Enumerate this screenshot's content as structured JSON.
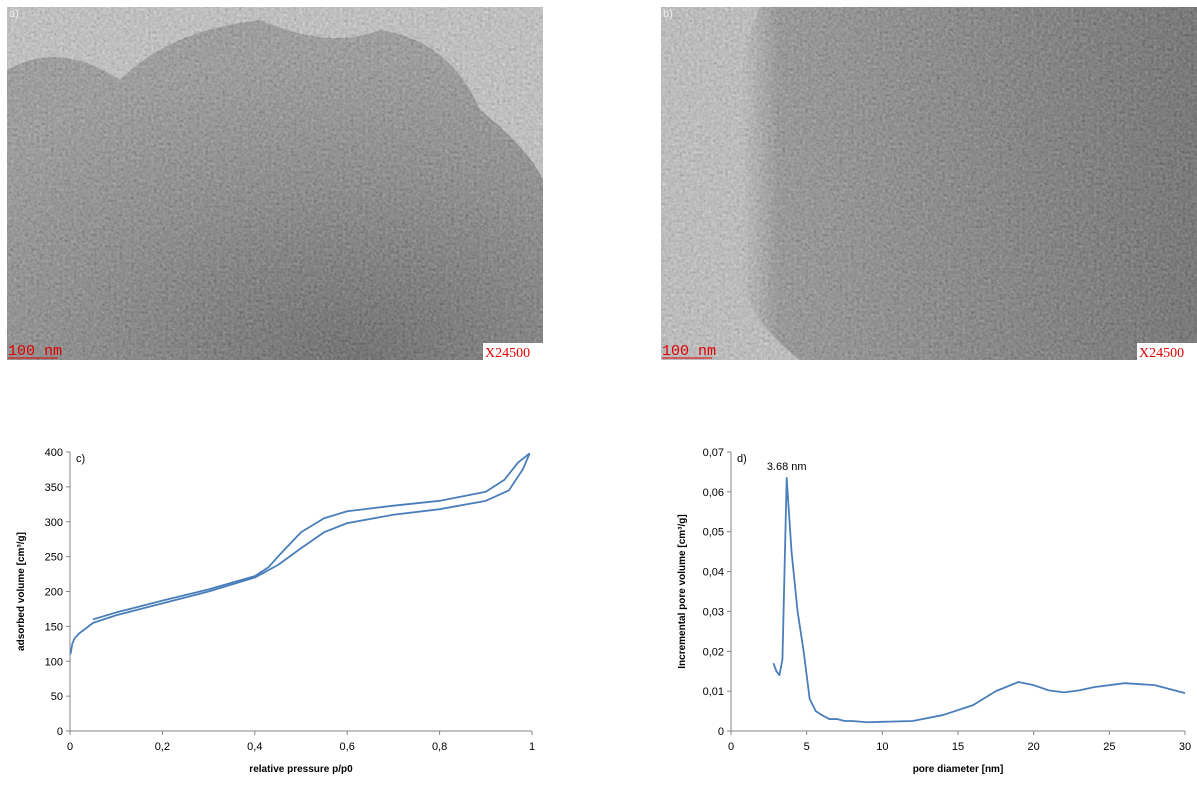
{
  "images": [
    {
      "label": "a)",
      "scale": "100 nm",
      "magnification": "X24500"
    },
    {
      "label": "b)",
      "scale": "100 nm",
      "magnification": "X24500"
    }
  ],
  "chart_data": [
    {
      "type": "line",
      "label": "c)",
      "x_label": "relative pressure p/p0",
      "y_label": "adsorbed volume [cm³/g]",
      "xlim": [
        0,
        1
      ],
      "xticks": [
        0,
        {
          "value": 0.2,
          "label": "0,2"
        },
        {
          "value": 0.4,
          "label": "0,4"
        },
        {
          "value": 0.6,
          "label": "0,6"
        },
        {
          "value": 0.8,
          "label": "0,8"
        },
        1
      ],
      "ylim": [
        0,
        400
      ],
      "yticks": [
        0,
        50,
        100,
        150,
        200,
        250,
        300,
        350,
        400
      ],
      "series": [
        {
          "color": "#4a7ebb",
          "x": [
            0.001,
            0.005,
            0.01,
            0.02,
            0.05,
            0.1,
            0.2,
            0.3,
            0.4,
            0.45,
            0.5,
            0.55,
            0.6,
            0.7,
            0.8,
            0.9,
            0.95,
            0.98,
            0.995
          ],
          "values": [
            110,
            125,
            133,
            140,
            155,
            166,
            183,
            200,
            220,
            238,
            262,
            285,
            298,
            310,
            318,
            330,
            345,
            375,
            398
          ]
        },
        {
          "color": "#4a7ebb",
          "x": [
            0.995,
            0.97,
            0.94,
            0.9,
            0.8,
            0.7,
            0.6,
            0.55,
            0.5,
            0.45,
            0.43,
            0.4,
            0.3,
            0.2,
            0.1,
            0.05
          ],
          "values": [
            398,
            385,
            360,
            343,
            330,
            323,
            315,
            305,
            285,
            250,
            235,
            222,
            203,
            187,
            170,
            160
          ]
        }
      ]
    },
    {
      "type": "line",
      "label": "d)",
      "annotation": "3.68 nm",
      "x_label": "pore diameter [nm]",
      "y_label": "Incremental pore volume [cm³/g]",
      "xlim": [
        0,
        30
      ],
      "xticks": [
        0,
        5,
        10,
        15,
        20,
        25,
        30
      ],
      "ylim": [
        0,
        0.07
      ],
      "yticks": [
        0,
        {
          "value": 0.01,
          "label": "0,01"
        },
        {
          "value": 0.02,
          "label": "0,02"
        },
        {
          "value": 0.03,
          "label": "0,03"
        },
        {
          "value": 0.04,
          "label": "0,04"
        },
        {
          "value": 0.05,
          "label": "0,05"
        },
        {
          "value": 0.06,
          "label": "0,06"
        },
        {
          "value": 0.07,
          "label": "0,07"
        }
      ],
      "series": [
        {
          "color": "#4a7ebb",
          "x": [
            2.8,
            3.0,
            3.2,
            3.4,
            3.68,
            4.0,
            4.4,
            4.8,
            5.2,
            5.6,
            6.0,
            6.5,
            7,
            7.5,
            8,
            9,
            10,
            12,
            14,
            16,
            17.5,
            19,
            20,
            21,
            22,
            23,
            24,
            26,
            28,
            30
          ],
          "values": [
            0.017,
            0.015,
            0.014,
            0.018,
            0.0635,
            0.045,
            0.03,
            0.02,
            0.008,
            0.005,
            0.004,
            0.003,
            0.003,
            0.0025,
            0.0025,
            0.0022,
            0.0023,
            0.0025,
            0.004,
            0.0065,
            0.01,
            0.0123,
            0.0115,
            0.0102,
            0.0097,
            0.0102,
            0.011,
            0.012,
            0.0115,
            0.0095
          ]
        }
      ]
    }
  ]
}
